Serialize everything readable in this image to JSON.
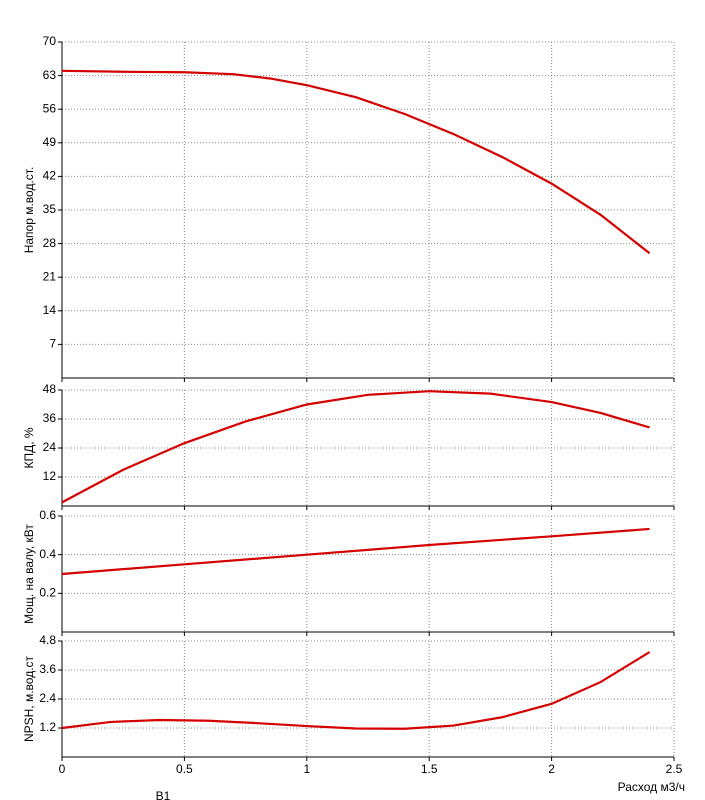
{
  "chart_data": [
    {
      "type": "line",
      "ylabel": "Напор м.вод.ст.",
      "color": "#d40000",
      "grid": true,
      "x": [
        0,
        0.25,
        0.5,
        0.7,
        0.85,
        1.0,
        1.2,
        1.4,
        1.6,
        1.8,
        2.0,
        2.2,
        2.4
      ],
      "values": [
        64,
        63.8,
        63.7,
        63.3,
        62.4,
        61,
        58.5,
        55,
        50.8,
        46,
        40.5,
        34,
        26
      ],
      "xlim": [
        0,
        2.5
      ],
      "xticks": [
        0,
        0.5,
        1,
        1.5,
        2,
        2.5
      ],
      "ylim": [
        0,
        70
      ],
      "yticks": [
        7,
        14,
        21,
        28,
        35,
        42,
        49,
        56,
        63,
        70
      ]
    },
    {
      "type": "line",
      "ylabel": "КПД, %",
      "color": "#d40000",
      "grid": true,
      "x": [
        0,
        0.25,
        0.5,
        0.75,
        1.0,
        1.25,
        1.5,
        1.75,
        2.0,
        2.2,
        2.4
      ],
      "values": [
        1.5,
        15,
        26,
        35,
        42,
        46,
        47.5,
        46.5,
        43,
        38.5,
        32.5
      ],
      "xlim": [
        0,
        2.5
      ],
      "xticks": [
        0,
        0.5,
        1,
        1.5,
        2,
        2.5
      ],
      "ylim": [
        0,
        48
      ],
      "yticks": [
        12,
        24,
        36,
        48
      ]
    },
    {
      "type": "line",
      "ylabel": "Мощ. на валу, кВт",
      "color": "#d40000",
      "grid": true,
      "x": [
        0,
        0.5,
        1.0,
        1.5,
        2.0,
        2.4
      ],
      "values": [
        0.3,
        0.35,
        0.4,
        0.45,
        0.495,
        0.533
      ],
      "xlim": [
        0,
        2.5
      ],
      "xticks": [
        0,
        0.5,
        1,
        1.5,
        2,
        2.5
      ],
      "ylim": [
        0,
        0.6
      ],
      "yticks": [
        0.2,
        0.4,
        0.6
      ]
    },
    {
      "type": "line",
      "ylabel": "NPSH, м.вод.ст",
      "xlabel": "Расход м3/ч",
      "annotation": "В1",
      "color": "#d40000",
      "grid": true,
      "x": [
        0,
        0.2,
        0.4,
        0.6,
        0.8,
        1.0,
        1.2,
        1.4,
        1.6,
        1.8,
        2.0,
        2.2,
        2.4
      ],
      "values": [
        1.2,
        1.45,
        1.53,
        1.5,
        1.4,
        1.28,
        1.18,
        1.17,
        1.3,
        1.65,
        2.2,
        3.1,
        4.34
      ],
      "xlim": [
        0,
        2.5
      ],
      "xticks": [
        0,
        0.5,
        1,
        1.5,
        2,
        2.5
      ],
      "ylim": [
        0,
        4.8
      ],
      "yticks": [
        1.2,
        2.4,
        3.6,
        4.8
      ]
    }
  ]
}
